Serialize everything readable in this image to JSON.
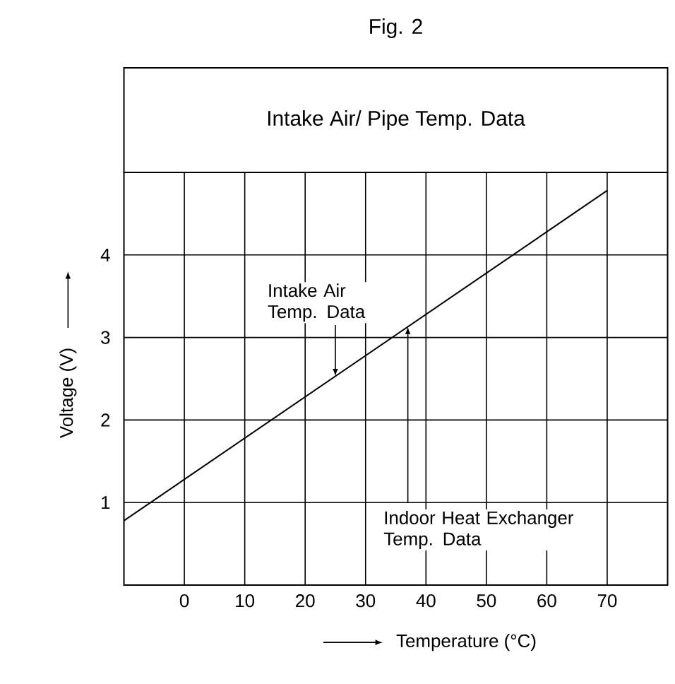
{
  "chart_data": {
    "type": "line",
    "title": "Fig. 2",
    "subtitle": "Intake Air/ Pipe Temp. Data",
    "xlabel": "Temperature (°C)",
    "ylabel": "Voltage (V)",
    "x": [
      -10,
      70
    ],
    "values": [
      0.78,
      4.78
    ],
    "color": "#000000",
    "marker": "none",
    "line_style": "solid",
    "xlim": [
      -10,
      80
    ],
    "ylim": [
      0,
      5
    ],
    "xticks": [
      0,
      10,
      20,
      30,
      40,
      50,
      60,
      70
    ],
    "yticks": [
      1,
      2,
      3,
      4
    ],
    "grid": true,
    "annotations": [
      {
        "text": "Intake Air Temp. Data",
        "x": 25,
        "y": 2.53
      },
      {
        "text": "Indoor Heat Exchanger Temp. Data",
        "x": 37,
        "y": 3.13
      }
    ]
  }
}
